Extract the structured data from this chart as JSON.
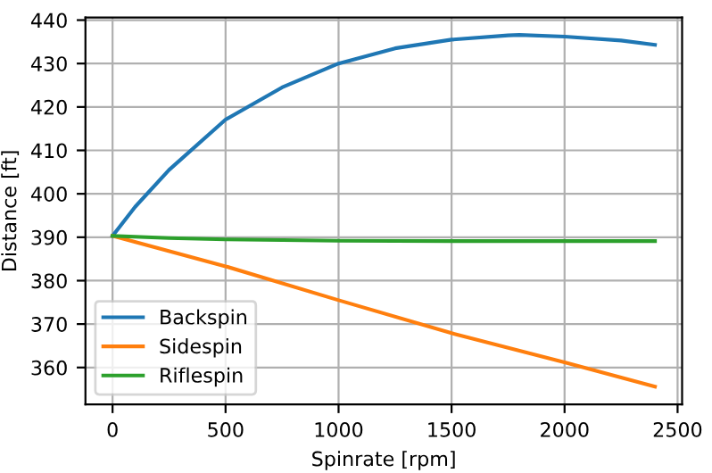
{
  "chart_data": {
    "type": "line",
    "xlabel": "Spinrate [rpm]",
    "ylabel": "Distance [ft]",
    "series": [
      {
        "name": "Backspin",
        "color": "#1f77b4",
        "x": [
          0,
          100,
          250,
          500,
          750,
          1000,
          1250,
          1500,
          1750,
          1800,
          2000,
          2250,
          2400
        ],
        "values": [
          390.3,
          397,
          405.5,
          417.1,
          424.5,
          430,
          433.5,
          435.5,
          436.5,
          436.6,
          436.2,
          435.3,
          434.3
        ]
      },
      {
        "name": "Sidespin",
        "color": "#ff7f0e",
        "x": [
          0,
          500,
          1000,
          1500,
          2000,
          2400
        ],
        "values": [
          390.3,
          383.3,
          375.5,
          367.9,
          361.2,
          355.6
        ]
      },
      {
        "name": "Riflespin",
        "color": "#2ca02c",
        "x": [
          0,
          250,
          500,
          1000,
          1500,
          2000,
          2400
        ],
        "values": [
          390.3,
          389.8,
          389.5,
          389.2,
          389.1,
          389.1,
          389.1
        ]
      }
    ],
    "xlim": [
      -120,
      2520
    ],
    "ylim": [
      351.5,
      440.6
    ],
    "xticks": [
      0,
      500,
      1000,
      1500,
      2000,
      2500
    ],
    "yticks": [
      360,
      370,
      380,
      390,
      400,
      410,
      420,
      430,
      440
    ],
    "grid": true,
    "legend": "bottom left",
    "marker": "none",
    "line_style": "solid"
  }
}
